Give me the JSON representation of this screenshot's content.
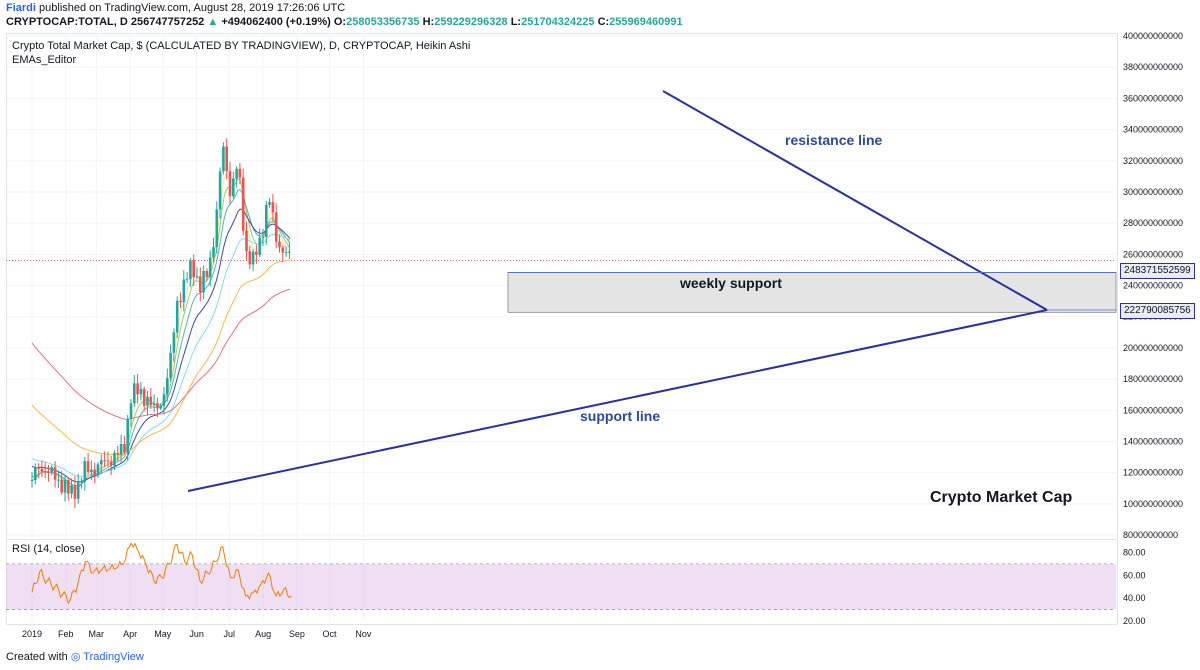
{
  "header": {
    "author": "Fiardi",
    "published": "published on TradingView.com, August 28, 2019 17:26:06 UTC",
    "symbol": "CRYPTOCAP:TOTAL, D",
    "last": "256747757252",
    "change": "+494062400 (+0.19%)",
    "o_label": "O:",
    "o_val": "258053356735",
    "h_label": "H:",
    "h_val": "259229296328",
    "l_label": "L:",
    "l_val": "251704324225",
    "c_label": "C:",
    "c_val": "255969460991",
    "up_arrow": "▲"
  },
  "chart": {
    "title": "Crypto Total Market Cap, $ (CALCULATED BY TRADINGVIEW), D, CRYPTOCAP, Heikin Ashi",
    "indicator": "EMAs_Editor",
    "rsi_label": "RSI (14, close)",
    "watermark": "Crypto Market Cap"
  },
  "annotations": {
    "resistance": "resistance line",
    "support": "support line",
    "weekly": "weekly support",
    "tag_upper": "248371552599",
    "tag_lower": "222790085756"
  },
  "footer": {
    "created": "Created with",
    "brand": "TradingView"
  },
  "colors": {
    "up": "#26a69a",
    "down": "#ef5350",
    "trend": "#2a2fa8",
    "rsi": "#f57c00",
    "rsiband": "#e1bee7"
  },
  "chart_data": {
    "type": "candlestick",
    "x_ticks": [
      "2019",
      "Feb",
      "Mar",
      "Apr",
      "May",
      "Jun",
      "Jul",
      "Aug",
      "Sep",
      "Oct",
      "Nov"
    ],
    "y_ticks": [
      "400000000000",
      "380000000000",
      "360000000000",
      "340000000000",
      "320000000000",
      "300000000000",
      "280000000000",
      "260000000000",
      "240000000000",
      "220000000000",
      "200000000000",
      "180000000000",
      "160000000000",
      "140000000000",
      "120000000000",
      "100000000000",
      "80000000000"
    ],
    "ylim": [
      80000000000,
      400000000000
    ],
    "rsi_ticks": [
      "80.00",
      "60.00",
      "40.00",
      "20.00"
    ],
    "rsi_lim": [
      20,
      90
    ],
    "close_series": [
      [
        "2019-01-01",
        115
      ],
      [
        "2019-01-08",
        125
      ],
      [
        "2019-01-15",
        120
      ],
      [
        "2019-01-22",
        118
      ],
      [
        "2019-01-29",
        112
      ],
      [
        "2019-02-05",
        106
      ],
      [
        "2019-02-12",
        112
      ],
      [
        "2019-02-19",
        122
      ],
      [
        "2019-02-26",
        122
      ],
      [
        "2019-03-05",
        125
      ],
      [
        "2019-03-12",
        128
      ],
      [
        "2019-03-19",
        131
      ],
      [
        "2019-03-26",
        134
      ],
      [
        "2019-04-02",
        170
      ],
      [
        "2019-04-09",
        172
      ],
      [
        "2019-04-16",
        168
      ],
      [
        "2019-04-23",
        160
      ],
      [
        "2019-04-30",
        166
      ],
      [
        "2019-05-07",
        185
      ],
      [
        "2019-05-14",
        230
      ],
      [
        "2019-05-21",
        240
      ],
      [
        "2019-05-28",
        255
      ],
      [
        "2019-06-04",
        238
      ],
      [
        "2019-06-11",
        248
      ],
      [
        "2019-06-18",
        275
      ],
      [
        "2019-06-25",
        330
      ],
      [
        "2019-07-02",
        300
      ],
      [
        "2019-07-09",
        318
      ],
      [
        "2019-07-16",
        262
      ],
      [
        "2019-07-23",
        255
      ],
      [
        "2019-07-30",
        270
      ],
      [
        "2019-08-06",
        298
      ],
      [
        "2019-08-13",
        270
      ],
      [
        "2019-08-20",
        262
      ],
      [
        "2019-08-27",
        256
      ]
    ],
    "rsi_series": [
      [
        "2019-01-01",
        45
      ],
      [
        "2019-01-08",
        63
      ],
      [
        "2019-01-15",
        55
      ],
      [
        "2019-01-22",
        50
      ],
      [
        "2019-01-29",
        43
      ],
      [
        "2019-02-05",
        38
      ],
      [
        "2019-02-12",
        52
      ],
      [
        "2019-02-19",
        72
      ],
      [
        "2019-02-26",
        62
      ],
      [
        "2019-03-05",
        64
      ],
      [
        "2019-03-12",
        65
      ],
      [
        "2019-03-19",
        66
      ],
      [
        "2019-03-26",
        70
      ],
      [
        "2019-04-02",
        88
      ],
      [
        "2019-04-09",
        80
      ],
      [
        "2019-04-16",
        68
      ],
      [
        "2019-04-23",
        55
      ],
      [
        "2019-04-30",
        58
      ],
      [
        "2019-05-07",
        70
      ],
      [
        "2019-05-14",
        87
      ],
      [
        "2019-05-21",
        72
      ],
      [
        "2019-05-28",
        78
      ],
      [
        "2019-06-04",
        55
      ],
      [
        "2019-06-11",
        62
      ],
      [
        "2019-06-18",
        72
      ],
      [
        "2019-06-25",
        85
      ],
      [
        "2019-07-02",
        58
      ],
      [
        "2019-07-09",
        65
      ],
      [
        "2019-07-16",
        42
      ],
      [
        "2019-07-23",
        45
      ],
      [
        "2019-07-30",
        52
      ],
      [
        "2019-08-06",
        62
      ],
      [
        "2019-08-13",
        42
      ],
      [
        "2019-08-20",
        48
      ],
      [
        "2019-08-27",
        42
      ]
    ]
  }
}
